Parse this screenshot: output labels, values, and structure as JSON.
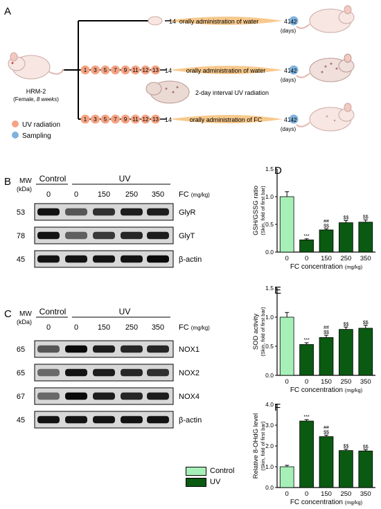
{
  "panels": {
    "A": "A",
    "B": "B",
    "C": "C",
    "D": "D",
    "E": "E",
    "F": "F"
  },
  "schematic": {
    "mouse_label": "HRM-2",
    "mouse_sub_prefix": "(Female, ",
    "mouse_sub_italic": "8 weeks",
    "mouse_sub_suffix": ")",
    "legend_uv": "UV radiation",
    "legend_sampling": "Sampling",
    "row1": {
      "start": "14",
      "text": "orally administration of water",
      "end_a": "41",
      "end_b": "42",
      "unit": "(days)"
    },
    "row2": {
      "days": [
        "1",
        "3",
        "5",
        "7",
        "9",
        "11",
        "12",
        "13"
      ],
      "start": "14",
      "text": "orally administration of water",
      "end_a": "41",
      "end_b": "42",
      "unit": "(days)"
    },
    "row3": {
      "days": [
        "1",
        "3",
        "5",
        "7",
        "9",
        "11",
        "12",
        "13"
      ],
      "start": "14",
      "text": "orally administration of FC",
      "end_a": "41",
      "end_b": "42",
      "unit": "(days)"
    },
    "uv_interval": "2-day interval UV radiation",
    "colors": {
      "uv": "#f4a484",
      "sampling": "#7fb2dc",
      "bar": "#f7c98d"
    }
  },
  "blotB": {
    "mw_header": "MW",
    "mw_unit": "(kDa)",
    "group_control": "Control",
    "group_uv": "UV",
    "doses": [
      "0",
      "0",
      "150",
      "250",
      "350"
    ],
    "fc_label": "FC",
    "fc_unit": "(mg/kg)",
    "rows": [
      {
        "mw": "53",
        "label": "GlyR",
        "intensity": [
          0.9,
          0.55,
          0.75,
          0.85,
          0.85
        ]
      },
      {
        "mw": "78",
        "label": "GlyT",
        "intensity": [
          0.9,
          0.5,
          0.7,
          0.8,
          0.85
        ]
      },
      {
        "mw": "45",
        "label": "β-actin",
        "intensity": [
          0.9,
          0.9,
          0.9,
          0.9,
          0.95
        ]
      }
    ]
  },
  "blotC": {
    "mw_header": "MW",
    "mw_unit": "(kDa)",
    "group_control": "Control",
    "group_uv": "UV",
    "doses": [
      "0",
      "0",
      "150",
      "250",
      "350"
    ],
    "fc_label": "FC",
    "fc_unit": "(mg/kg)",
    "rows": [
      {
        "mw": "65",
        "label": "NOX1",
        "intensity": [
          0.55,
          0.95,
          0.85,
          0.8,
          0.8
        ]
      },
      {
        "mw": "65",
        "label": "NOX2",
        "intensity": [
          0.45,
          0.9,
          0.85,
          0.8,
          0.75
        ]
      },
      {
        "mw": "67",
        "label": "NOX4",
        "intensity": [
          0.45,
          0.95,
          0.85,
          0.8,
          0.85
        ]
      },
      {
        "mw": "45",
        "label": "β-actin",
        "intensity": [
          0.9,
          0.9,
          0.9,
          0.9,
          0.9
        ]
      }
    ]
  },
  "chart_data": [
    {
      "type": "bar",
      "panel": "D",
      "categories": [
        "0",
        "0",
        "150",
        "250",
        "350"
      ],
      "values": [
        1.0,
        0.22,
        0.4,
        0.53,
        0.54
      ],
      "errors": [
        0.09,
        0.02,
        0.02,
        0.04,
        0.04
      ],
      "annotations": [
        [
          "",
          ""
        ],
        [
          "***",
          ""
        ],
        [
          "##",
          "$$"
        ],
        [
          "$$",
          ""
        ],
        [
          "$$",
          ""
        ]
      ],
      "ylabel": "GSH/GSSG ratio",
      "ylabel2": "(Skin, fold of first bar)",
      "xlabel": "FC concentration",
      "xunit": "(mg/kg)",
      "ylim": [
        0,
        1.5
      ],
      "yticks": [
        "0.0",
        "0.5",
        "1.0",
        "1.5"
      ]
    },
    {
      "type": "bar",
      "panel": "E",
      "categories": [
        "0",
        "0",
        "150",
        "250",
        "350"
      ],
      "values": [
        1.0,
        0.53,
        0.65,
        0.79,
        0.81
      ],
      "errors": [
        0.08,
        0.03,
        0.04,
        0.04,
        0.05
      ],
      "annotations": [
        [
          "",
          ""
        ],
        [
          "***",
          ""
        ],
        [
          "##",
          "$$"
        ],
        [
          "$$",
          ""
        ],
        [
          "$$",
          ""
        ]
      ],
      "ylabel": "SOD activity",
      "ylabel2": "(Skin, fold of first bar)",
      "xlabel": "FC concentration",
      "xunit": "(mg/kg)",
      "ylim": [
        0,
        1.5
      ],
      "yticks": [
        "0.0",
        "0.5",
        "1.0",
        "1.5"
      ]
    },
    {
      "type": "bar",
      "panel": "F",
      "categories": [
        "0",
        "0",
        "150",
        "250",
        "350"
      ],
      "values": [
        1.0,
        3.2,
        2.45,
        1.78,
        1.76
      ],
      "errors": [
        0.07,
        0.07,
        0.07,
        0.07,
        0.06
      ],
      "annotations": [
        [
          "",
          ""
        ],
        [
          "***",
          ""
        ],
        [
          "##",
          "$$"
        ],
        [
          "$$",
          ""
        ],
        [
          "$$",
          ""
        ]
      ],
      "ylabel": "Relative 8-OHdG level",
      "ylabel2": "(Skin, fold of first bar)",
      "xlabel": "FC concentration",
      "xunit": "(mg/kg)",
      "ylim": [
        0,
        4
      ],
      "yticks": [
        "0.0",
        "1.0",
        "2.0",
        "3.0",
        "4.0"
      ]
    }
  ],
  "legend": {
    "control_label": "Control",
    "uv_label": "UV",
    "control_color": "#a6f0b8",
    "uv_color": "#0a5a12"
  }
}
